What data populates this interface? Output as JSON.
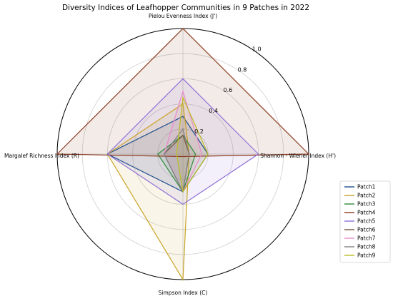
{
  "chart_data": {
    "type": "radar",
    "title": "Diversity Indices of Leafhopper Communities in 9 Patches in 2022",
    "axes": [
      "Shannon - Wiener Index (H')",
      "Pielou Evenness Index (J')",
      "Margalef Richness Index (R)",
      "Simpson Index (C)"
    ],
    "rlim": [
      0,
      1.0
    ],
    "rticks": [
      "0.2",
      "0.4",
      "0.6",
      "0.8",
      "1.0"
    ],
    "rtick_values": [
      0.2,
      0.4,
      0.6,
      0.8,
      1.0
    ],
    "legend_position": "right",
    "series": [
      {
        "name": "Patch1",
        "color": "#1f4e8c",
        "values": [
          0.2,
          0.3,
          0.6,
          0.3
        ]
      },
      {
        "name": "Patch2",
        "color": "#c9a227",
        "values": [
          0.05,
          0.4,
          0.6,
          1.0
        ]
      },
      {
        "name": "Patch3",
        "color": "#2e8b3a",
        "values": [
          0.1,
          0.15,
          0.2,
          0.3
        ]
      },
      {
        "name": "Patch4",
        "color": "#8b3a1f",
        "values": [
          1.0,
          1.0,
          1.0,
          0.02
        ]
      },
      {
        "name": "Patch5",
        "color": "#8e6fd8",
        "values": [
          0.6,
          0.6,
          0.6,
          0.4
        ]
      },
      {
        "name": "Patch6",
        "color": "#7a5540",
        "values": [
          0.05,
          0.15,
          0.15,
          0.3
        ]
      },
      {
        "name": "Patch7",
        "color": "#e88acb",
        "values": [
          0.15,
          0.5,
          0.15,
          0.3
        ]
      },
      {
        "name": "Patch8",
        "color": "#808080",
        "values": [
          0.05,
          0.2,
          0.15,
          0.3
        ]
      },
      {
        "name": "Patch9",
        "color": "#bcbd22",
        "values": [
          0.2,
          0.45,
          0.05,
          0.3
        ]
      }
    ]
  }
}
